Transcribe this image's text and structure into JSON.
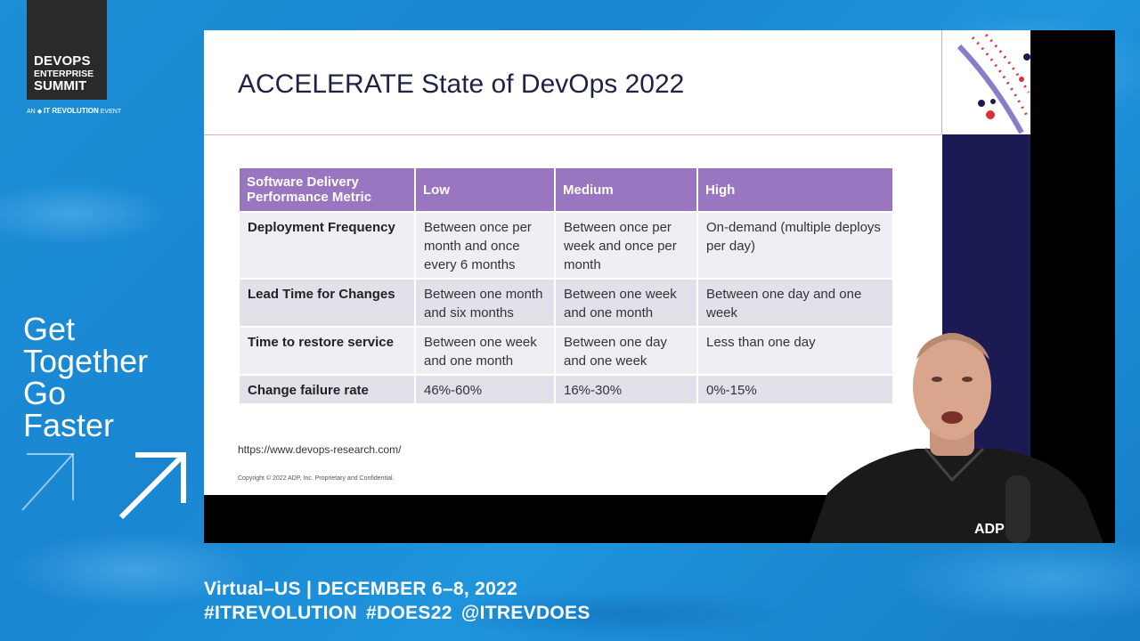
{
  "branding": {
    "logo_line1": "DEVOPS",
    "logo_line2": "ENTERPRISE",
    "logo_line3": "SUMMIT",
    "logo_sub_prefix": "AN",
    "logo_sub_brand": "IT REVOLUTION",
    "logo_sub_suffix": "EVENT"
  },
  "tagline": [
    "Get",
    "Together",
    "Go",
    "Faster"
  ],
  "footer": {
    "line1": "Virtual–US | DECEMBER 6–8, 2022",
    "line2": "#ITREVOLUTION  #DOES22  @ITREVDOES"
  },
  "slide": {
    "title": "ACCELERATE State of DevOps 2022",
    "url": "https://www.devops-research.com/",
    "copyright": "Copyright © 2022 ADP, Inc. Proprietary and Confidential.",
    "table": {
      "headers": [
        "Software Delivery Performance Metric",
        "Low",
        "Medium",
        "High"
      ],
      "rows": [
        [
          "Deployment Frequency",
          "Between once per month and once every 6 months",
          "Between once per week and once per month",
          "On-demand (multiple deploys per day)"
        ],
        [
          "Lead Time for Changes",
          "Between one month and six months",
          "Between one week and one month",
          "Between one day and one week"
        ],
        [
          "Time to restore service",
          "Between one week and one month",
          "Between one day and one week",
          "Less than one day"
        ],
        [
          "Change failure rate",
          "46%-60%",
          "16%-30%",
          "0%-15%"
        ]
      ]
    }
  },
  "speaker": {
    "shirt_logo": "ADP"
  },
  "colors": {
    "background": "#1c8fd6",
    "table_header": "#9a76c0",
    "slide_title": "#1f2244",
    "sidebar": "#1c1a52"
  }
}
